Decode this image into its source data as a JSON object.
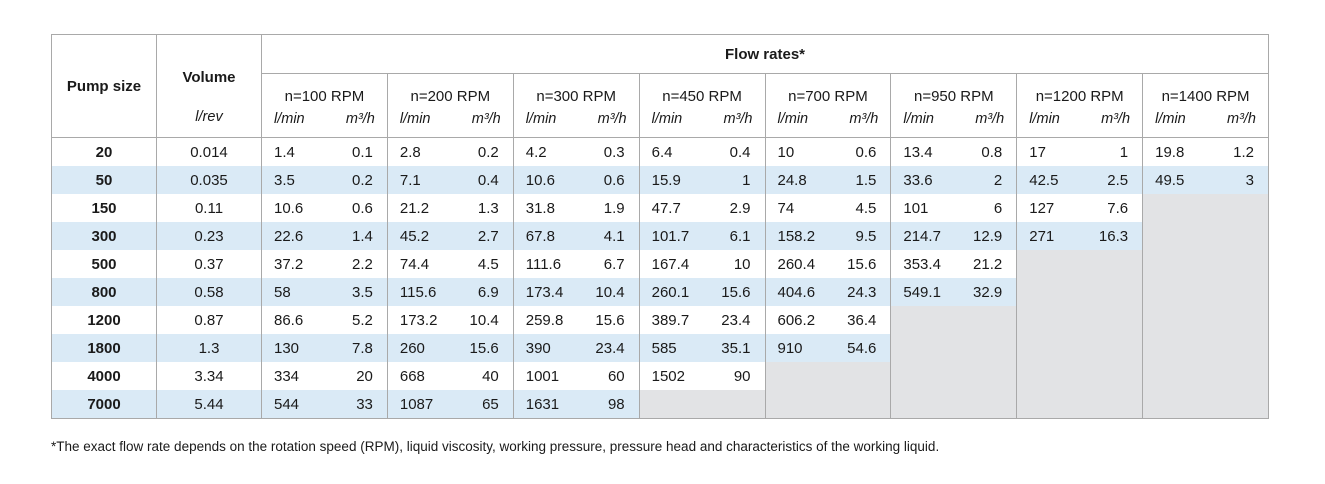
{
  "headers": {
    "pump_size": "Pump size",
    "volume": "Volume",
    "volume_unit": "l/rev",
    "flow_rates": "Flow rates*",
    "unit_lmin": "l/min",
    "unit_m3h": "m³/h"
  },
  "rpm_columns": [
    "n=100 RPM",
    "n=200 RPM",
    "n=300 RPM",
    "n=450 RPM",
    "n=700 RPM",
    "n=950 RPM",
    "n=1200 RPM",
    "n=1400 RPM"
  ],
  "rows": [
    {
      "size": "20",
      "volume": "0.014",
      "values": [
        [
          "1.4",
          "0.1"
        ],
        [
          "2.8",
          "0.2"
        ],
        [
          "4.2",
          "0.3"
        ],
        [
          "6.4",
          "0.4"
        ],
        [
          "10",
          "0.6"
        ],
        [
          "13.4",
          "0.8"
        ],
        [
          "17",
          "1"
        ],
        [
          "19.8",
          "1.2"
        ]
      ]
    },
    {
      "size": "50",
      "volume": "0.035",
      "values": [
        [
          "3.5",
          "0.2"
        ],
        [
          "7.1",
          "0.4"
        ],
        [
          "10.6",
          "0.6"
        ],
        [
          "15.9",
          "1"
        ],
        [
          "24.8",
          "1.5"
        ],
        [
          "33.6",
          "2"
        ],
        [
          "42.5",
          "2.5"
        ],
        [
          "49.5",
          "3"
        ]
      ]
    },
    {
      "size": "150",
      "volume": "0.11",
      "values": [
        [
          "10.6",
          "0.6"
        ],
        [
          "21.2",
          "1.3"
        ],
        [
          "31.8",
          "1.9"
        ],
        [
          "47.7",
          "2.9"
        ],
        [
          "74",
          "4.5"
        ],
        [
          "101",
          "6"
        ],
        [
          "127",
          "7.6"
        ]
      ]
    },
    {
      "size": "300",
      "volume": "0.23",
      "values": [
        [
          "22.6",
          "1.4"
        ],
        [
          "45.2",
          "2.7"
        ],
        [
          "67.8",
          "4.1"
        ],
        [
          "101.7",
          "6.1"
        ],
        [
          "158.2",
          "9.5"
        ],
        [
          "214.7",
          "12.9"
        ],
        [
          "271",
          "16.3"
        ]
      ]
    },
    {
      "size": "500",
      "volume": "0.37",
      "values": [
        [
          "37.2",
          "2.2"
        ],
        [
          "74.4",
          "4.5"
        ],
        [
          "111.6",
          "6.7"
        ],
        [
          "167.4",
          "10"
        ],
        [
          "260.4",
          "15.6"
        ],
        [
          "353.4",
          "21.2"
        ]
      ]
    },
    {
      "size": "800",
      "volume": "0.58",
      "values": [
        [
          "58",
          "3.5"
        ],
        [
          "115.6",
          "6.9"
        ],
        [
          "173.4",
          "10.4"
        ],
        [
          "260.1",
          "15.6"
        ],
        [
          "404.6",
          "24.3"
        ],
        [
          "549.1",
          "32.9"
        ]
      ]
    },
    {
      "size": "1200",
      "volume": "0.87",
      "values": [
        [
          "86.6",
          "5.2"
        ],
        [
          "173.2",
          "10.4"
        ],
        [
          "259.8",
          "15.6"
        ],
        [
          "389.7",
          "23.4"
        ],
        [
          "606.2",
          "36.4"
        ]
      ]
    },
    {
      "size": "1800",
      "volume": "1.3",
      "values": [
        [
          "130",
          "7.8"
        ],
        [
          "260",
          "15.6"
        ],
        [
          "390",
          "23.4"
        ],
        [
          "585",
          "35.1"
        ],
        [
          "910",
          "54.6"
        ]
      ]
    },
    {
      "size": "4000",
      "volume": "3.34",
      "values": [
        [
          "334",
          "20"
        ],
        [
          "668",
          "40"
        ],
        [
          "1001",
          "60"
        ],
        [
          "1502",
          "90"
        ]
      ]
    },
    {
      "size": "7000",
      "volume": "5.44",
      "values": [
        [
          "544",
          "33"
        ],
        [
          "1087",
          "65"
        ],
        [
          "1631",
          "98"
        ]
      ]
    }
  ],
  "footnote": "*The exact flow rate depends on the rotation speed (RPM), liquid viscosity, working pressure, pressure head and characteristics of the working liquid."
}
